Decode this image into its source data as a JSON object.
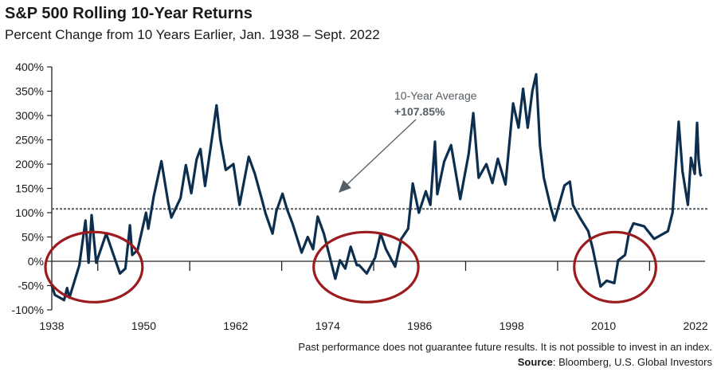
{
  "chart_data": {
    "type": "line",
    "title": "S&P 500 Rolling 10-Year Returns",
    "subtitle": "Percent Change from 10 Years Earlier, Jan. 1938 – Sept. 2022",
    "xlabel": "",
    "ylabel": "",
    "x_ticks": [
      "1938",
      "1950",
      "1962",
      "1974",
      "1986",
      "1998",
      "2010",
      "2022"
    ],
    "y_ticks": [
      "400%",
      "350%",
      "300%",
      "250%",
      "200%",
      "150%",
      "100%",
      "50%",
      "0%",
      "-50%",
      "-100%"
    ],
    "ylim": [
      -100,
      400
    ],
    "grid": false,
    "line_color": "#0d2f4f",
    "average": {
      "label": "10-Year Average",
      "value_label": "+107.85%",
      "value": 107.85,
      "color": "#555d66"
    },
    "highlight_color": "#9b1b1e",
    "highlighted_periods": [
      [
        1938,
        1949
      ],
      [
        1973,
        1985
      ],
      [
        2007,
        2016
      ]
    ],
    "series": [
      {
        "x": [
          1938,
          1938.4,
          1939.6,
          1940,
          1940.3,
          1941.6,
          1942.4,
          1942.8,
          1943.2,
          1943.8,
          1945.1,
          1945.8,
          1946.9,
          1947.6,
          1948.2,
          1948.5,
          1949.2,
          1950.3,
          1950.6,
          1951.3,
          1952.3,
          1953.2,
          1953.6,
          1954.8,
          1955.5,
          1956.2,
          1956.9,
          1957.4,
          1958,
          1959,
          1959.5,
          1960,
          1960.7,
          1961.7,
          1962.5,
          1963.7,
          1964.5,
          1965.4,
          1965.9,
          1966.8,
          1967.3,
          1968.1,
          1968.7,
          1969.4,
          1970.6,
          1971.4,
          1972.1,
          1972.7,
          1973.5,
          1975,
          1975.6,
          1976.3,
          1977,
          1977.8,
          1978.1,
          1979.1,
          1980.2,
          1980.9,
          1981.6,
          1982.8,
          1983.6,
          1984.5,
          1985.1,
          1985.9,
          1986.8,
          1987.4,
          1988,
          1988.3,
          1989.2,
          1990.1,
          1991.3,
          1992.4,
          1993,
          1993.7,
          1994.7,
          1995.5,
          1996.2,
          1997.2,
          1998.2,
          1998.9,
          1999.5,
          2000.1,
          2000.7,
          2001.2,
          2001.7,
          2002.2,
          2003.1,
          2003.6,
          2004.9,
          2005.6,
          2006,
          2006.9,
          2008,
          2008.6,
          2009.6,
          2010.4,
          2011.4,
          2011.9,
          2012.8,
          2013.3,
          2013.9,
          2015.3,
          2016.6,
          2018.4,
          2019,
          2019.8,
          2020.3,
          2021,
          2021.4,
          2021.9,
          2022.2,
          2022.4,
          2022.6,
          2022.75
        ],
        "y": [
          -50,
          -69,
          -80,
          -55,
          -75,
          -8,
          84,
          -3,
          95,
          -3,
          57,
          25,
          -25,
          -15,
          74,
          13,
          23,
          100,
          67,
          133,
          206,
          120,
          90,
          130,
          198,
          140,
          210,
          231,
          155,
          264,
          321,
          250,
          188,
          200,
          116,
          215,
          180,
          128,
          98,
          57,
          103,
          139,
          107,
          78,
          18,
          50,
          25,
          92,
          57,
          -36,
          2,
          -15,
          30,
          -8,
          -8,
          -25,
          8,
          57,
          25,
          -11,
          46,
          67,
          160,
          100,
          144,
          116,
          246,
          138,
          205,
          239,
          128,
          221,
          305,
          172,
          200,
          161,
          211,
          158,
          325,
          275,
          355,
          275,
          350,
          385,
          238,
          172,
          111,
          84,
          156,
          164,
          116,
          90,
          62,
          25,
          -52,
          -40,
          -45,
          2,
          13,
          57,
          78,
          72,
          46,
          62,
          100,
          287,
          185,
          116,
          213,
          180,
          285,
          210,
          180,
          175
        ]
      }
    ]
  },
  "footer": {
    "disclaimer": "Past performance does not guarantee future results. It is not possible to invest in an index.",
    "source_label": "Source",
    "source_text": ": Bloomberg, U.S. Global Investors"
  }
}
